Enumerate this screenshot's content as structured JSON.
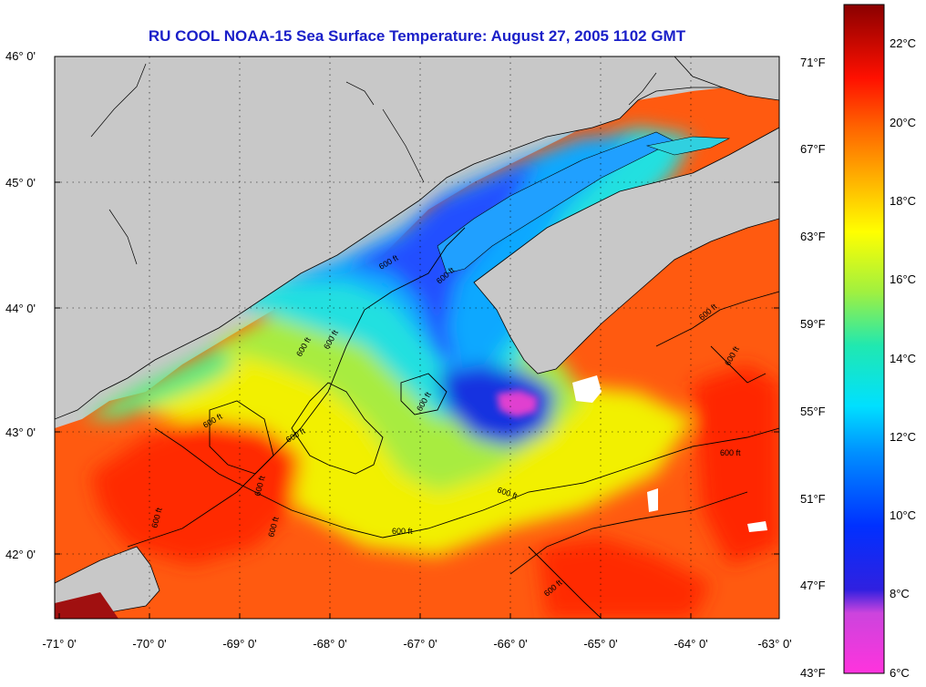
{
  "title": "RU COOL  NOAA-15  Sea Surface Temperature:  August 27, 2005 1102 GMT",
  "lat_labels": [
    "46° 0'",
    "45° 0'",
    "44° 0'",
    "43° 0'",
    "42° 0'"
  ],
  "lon_labels": [
    "-71° 0'",
    "-70° 0'",
    "-69° 0'",
    "-68° 0'",
    "-67° 0'",
    "-66° 0'",
    "-65° 0'",
    "-64° 0'",
    "-63° 0'"
  ],
  "colorbar": {
    "fahrenheit": [
      "71°F",
      "67°F",
      "63°F",
      "59°F",
      "55°F",
      "51°F",
      "47°F",
      "43°F"
    ],
    "celsius": [
      "22°C",
      "20°C",
      "18°C",
      "16°C",
      "14°C",
      "12°C",
      "10°C",
      "8°C",
      "6°C"
    ]
  },
  "contour_label": "600 ft",
  "colors": {
    "land": "#c8c8c8",
    "title": "#1a1fc8",
    "warm": "#ff3300",
    "cold": "#0030e0",
    "very_cold": "#ff33dd"
  }
}
